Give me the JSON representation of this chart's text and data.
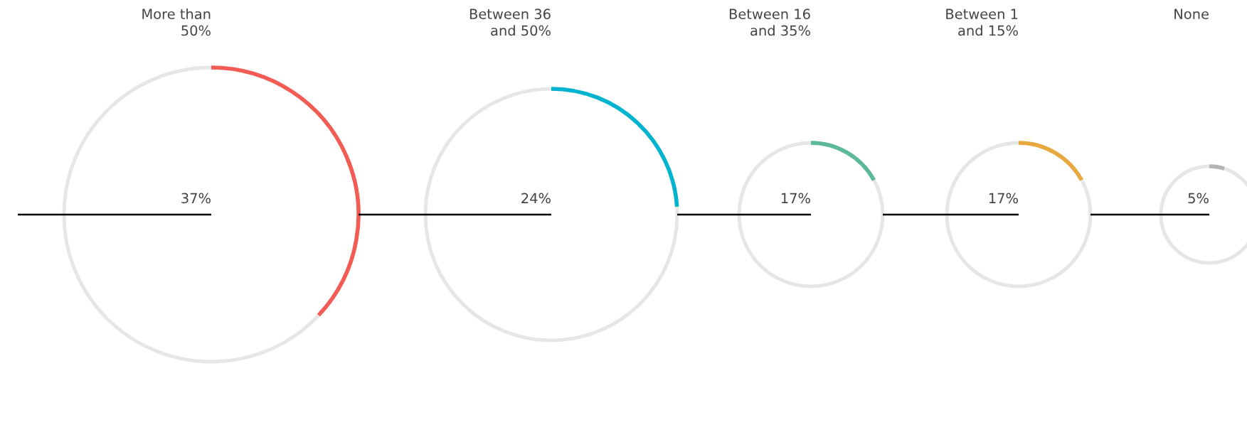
{
  "chart_data": {
    "type": "other",
    "categories": [
      "More than\n50%",
      "Between 36\nand 50%",
      "Between 16\nand 35%",
      "Between 1\nand 15%",
      "None"
    ],
    "values": [
      37,
      24,
      17,
      17,
      5
    ],
    "value_labels": [
      "37%",
      "24%",
      "17%",
      "17%",
      "5%"
    ],
    "colors": [
      "#f25c54",
      "#00b4d0",
      "#5bb89a",
      "#e8a840",
      "#b4b4b4"
    ]
  }
}
